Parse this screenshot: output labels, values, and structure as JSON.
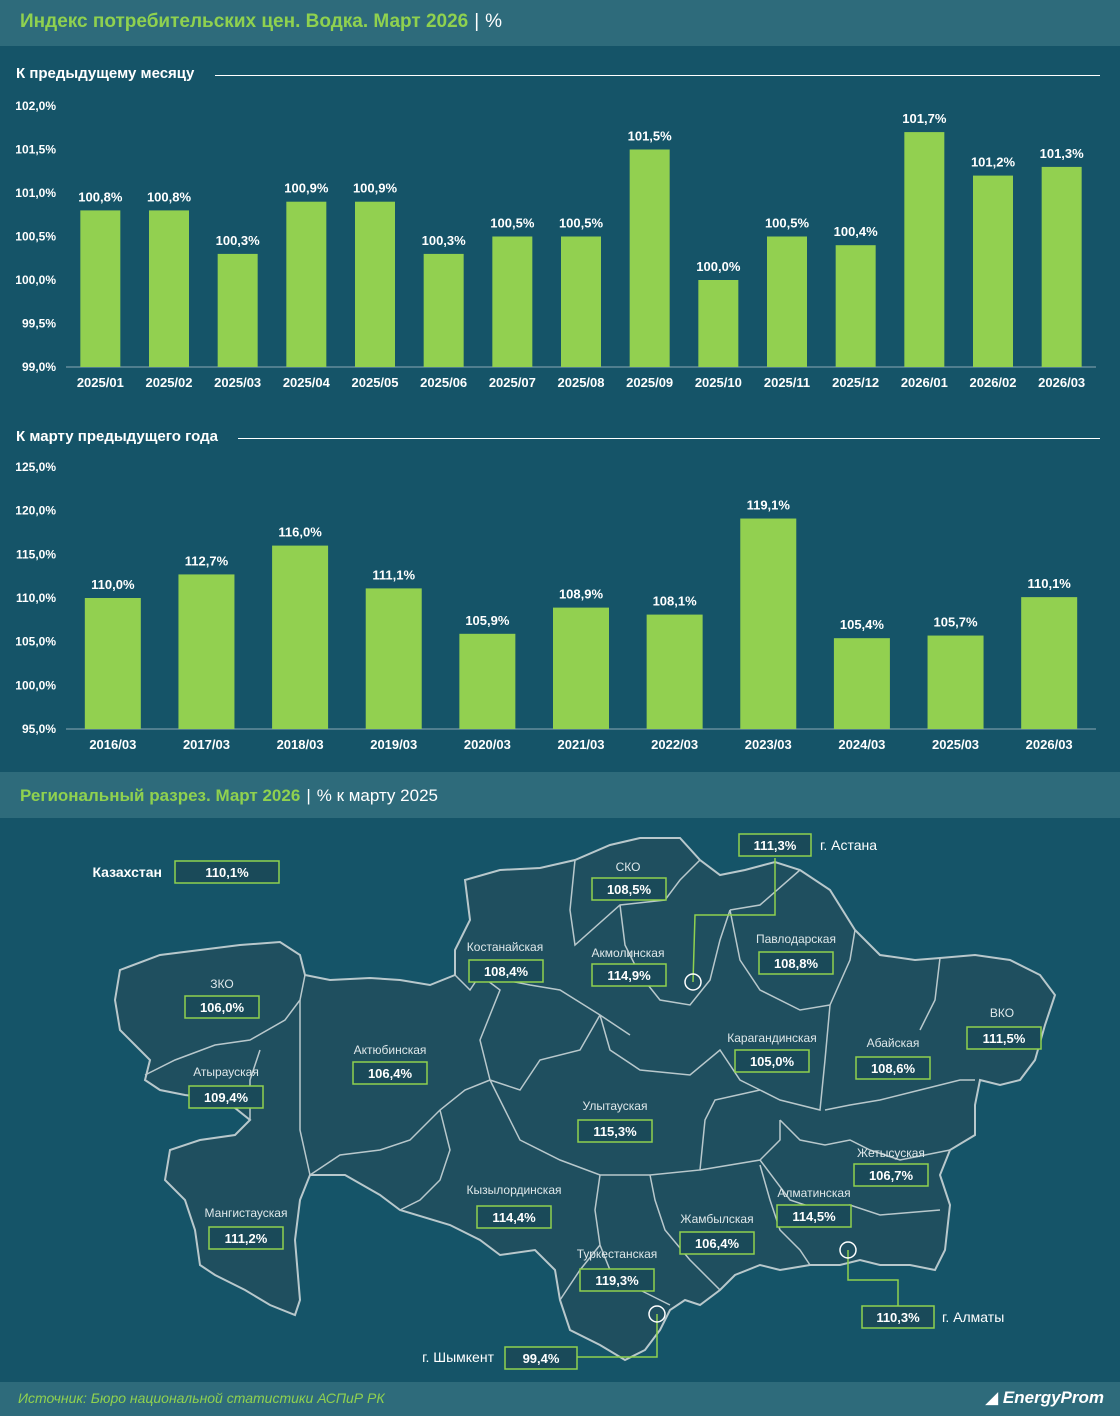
{
  "title": "Индекс потребительских цен. Водка. Март 2026",
  "title_unit": "%",
  "chart_data": [
    {
      "type": "bar",
      "title": "К предыдущему месяцу",
      "categories": [
        "2025/01",
        "2025/02",
        "2025/03",
        "2025/04",
        "2025/05",
        "2025/06",
        "2025/07",
        "2025/08",
        "2025/09",
        "2025/10",
        "2025/11",
        "2025/12",
        "2026/01",
        "2026/02",
        "2026/03"
      ],
      "values": [
        100.8,
        100.8,
        100.3,
        100.9,
        100.9,
        100.3,
        100.5,
        100.5,
        101.5,
        100.0,
        100.5,
        100.4,
        101.7,
        101.2,
        101.3
      ],
      "labels": [
        "100,8%",
        "100,8%",
        "100,3%",
        "100,9%",
        "100,9%",
        "100,3%",
        "100,5%",
        "100,5%",
        "101,5%",
        "100,0%",
        "100,5%",
        "100,4%",
        "101,7%",
        "101,2%",
        "101,3%"
      ],
      "ylim": [
        99.0,
        102.0
      ],
      "yticks": [
        "99,0%",
        "99,5%",
        "100,0%",
        "100,5%",
        "101,0%",
        "101,5%",
        "102,0%"
      ],
      "xlabel": "",
      "ylabel": ""
    },
    {
      "type": "bar",
      "title": "К марту предыдущего года",
      "categories": [
        "2016/03",
        "2017/03",
        "2018/03",
        "2019/03",
        "2020/03",
        "2021/03",
        "2022/03",
        "2023/03",
        "2024/03",
        "2025/03",
        "2026/03"
      ],
      "values": [
        110.0,
        112.7,
        116.0,
        111.1,
        105.9,
        108.9,
        108.1,
        119.1,
        105.4,
        105.7,
        110.1
      ],
      "labels": [
        "110,0%",
        "112,7%",
        "116,0%",
        "111,1%",
        "105,9%",
        "108,9%",
        "108,1%",
        "119,1%",
        "105,4%",
        "105,7%",
        "110,1%"
      ],
      "ylim": [
        95.0,
        125.0
      ],
      "yticks": [
        "95,0%",
        "100,0%",
        "105,0%",
        "110,0%",
        "115,0%",
        "120,0%",
        "125,0%"
      ],
      "xlabel": "",
      "ylabel": ""
    }
  ],
  "regional": {
    "title": "Региональный разрез. Март 2026",
    "unit": "% к марту 2025",
    "kazakhstan_label": "Казахстан",
    "kazakhstan_value": "110,1%",
    "regions": [
      {
        "name": "ЗКО",
        "value": "106,0%"
      },
      {
        "name": "Атырауская",
        "value": "109,4%"
      },
      {
        "name": "Мангистауская",
        "value": "111,2%"
      },
      {
        "name": "Актюбинская",
        "value": "106,4%"
      },
      {
        "name": "Костанайская",
        "value": "108,4%"
      },
      {
        "name": "СКО",
        "value": "108,5%"
      },
      {
        "name": "Акмолинская",
        "value": "114,9%"
      },
      {
        "name": "Павлодарская",
        "value": "108,8%"
      },
      {
        "name": "Карагандинская",
        "value": "105,0%"
      },
      {
        "name": "Абайская",
        "value": "108,6%"
      },
      {
        "name": "ВКО",
        "value": "111,5%"
      },
      {
        "name": "Улытауская",
        "value": "115,3%"
      },
      {
        "name": "Кызылординская",
        "value": "114,4%"
      },
      {
        "name": "Жамбылская",
        "value": "106,4%"
      },
      {
        "name": "Туркестанская",
        "value": "119,3%"
      },
      {
        "name": "Алматинская",
        "value": "114,5%"
      },
      {
        "name": "Жетысуская",
        "value": "106,7%"
      }
    ],
    "cities": [
      {
        "name": "г. Астана",
        "value": "111,3%"
      },
      {
        "name": "г. Алматы",
        "value": "110,3%"
      },
      {
        "name": "г. Шымкент",
        "value": "99,4%"
      }
    ]
  },
  "footer": {
    "source": "Источник: Бюро национальной статистики АСПиР РК",
    "brand": "EnergyProm"
  },
  "colors": {
    "background": "#155468",
    "header": "#2e6b7b",
    "bar": "#92d050",
    "accent_text": "#8fd14f",
    "map_fill": "#1f4f5f",
    "map_border": "#b8c8cc"
  }
}
